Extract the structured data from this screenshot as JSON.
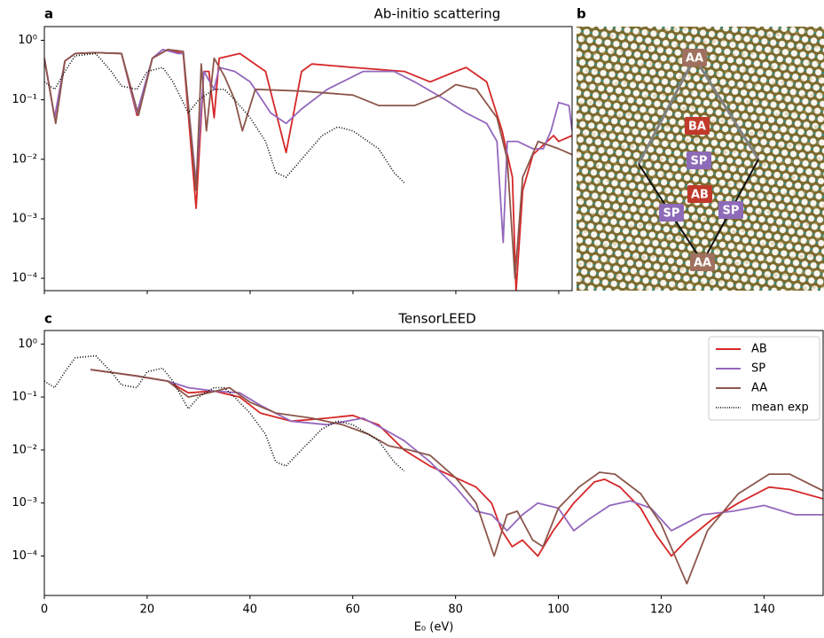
{
  "chart_data": [
    {
      "type": "line",
      "label": "a",
      "title": "Ab-initio scattering",
      "log_y": true,
      "legend": false,
      "xtick_labels": false,
      "xlim": [
        0,
        102.6
      ],
      "ylim": [
        6.2e-05,
        1.7
      ],
      "xticks": [
        0,
        20,
        40,
        60,
        80,
        100
      ],
      "yticks": [
        {
          "value": 1,
          "label": "10⁰"
        },
        {
          "value": 0.1,
          "label": "10⁻¹"
        },
        {
          "value": 0.01,
          "label": "10⁻²"
        },
        {
          "value": 0.001,
          "label": "10⁻³"
        },
        {
          "value": 0.0001,
          "label": "10⁻⁴"
        }
      ],
      "series": [
        {
          "name": "AB",
          "color": "#d62728",
          "style": "solid",
          "x": [
            0,
            2,
            4,
            6,
            10,
            15,
            18,
            21,
            24,
            27,
            29.5,
            31,
            32,
            33,
            34,
            38,
            43,
            47,
            50,
            52,
            60,
            70,
            75,
            80,
            82,
            86,
            89,
            91,
            91.7,
            93,
            95,
            99,
            100,
            102.6
          ],
          "values": [
            0.5,
            0.05,
            0.45,
            0.6,
            0.62,
            0.6,
            0.055,
            0.5,
            0.7,
            0.6,
            0.0015,
            0.3,
            0.3,
            0.05,
            0.5,
            0.6,
            0.3,
            0.013,
            0.3,
            0.4,
            0.35,
            0.3,
            0.2,
            0.3,
            0.35,
            0.2,
            0.03,
            0.005,
            6e-05,
            0.003,
            0.012,
            0.025,
            0.02,
            0.025
          ]
        },
        {
          "name": "SP",
          "color": "#9467bd",
          "style": "solid",
          "x": [
            0,
            2,
            4,
            6,
            10,
            15,
            18,
            21,
            23,
            26,
            27,
            29.5,
            31,
            33,
            34,
            37,
            40,
            44,
            47,
            50,
            55,
            62,
            68,
            72,
            78,
            82,
            86,
            88,
            89.2,
            90,
            92,
            95,
            97,
            98.5,
            100,
            102,
            102.6
          ],
          "values": [
            0.5,
            0.05,
            0.45,
            0.6,
            0.62,
            0.6,
            0.06,
            0.5,
            0.7,
            0.6,
            0.6,
            0.004,
            0.3,
            0.15,
            0.35,
            0.3,
            0.2,
            0.06,
            0.04,
            0.07,
            0.15,
            0.3,
            0.3,
            0.2,
            0.1,
            0.06,
            0.04,
            0.02,
            0.0004,
            0.02,
            0.02,
            0.015,
            0.015,
            0.03,
            0.09,
            0.08,
            0.03
          ]
        },
        {
          "name": "AA",
          "color": "#8c564b",
          "style": "solid",
          "x": [
            0,
            2.2,
            4,
            6,
            10,
            15,
            18.3,
            21,
            24,
            27,
            29.5,
            30.5,
            31.5,
            33,
            35,
            37,
            38.5,
            41,
            50,
            60,
            65,
            72,
            77,
            80,
            84,
            88,
            90,
            91.5,
            93,
            96,
            100,
            102.6
          ],
          "values": [
            0.5,
            0.04,
            0.45,
            0.6,
            0.62,
            0.6,
            0.055,
            0.5,
            0.7,
            0.65,
            0.003,
            0.4,
            0.03,
            0.5,
            0.25,
            0.1,
            0.03,
            0.15,
            0.14,
            0.12,
            0.08,
            0.08,
            0.12,
            0.18,
            0.15,
            0.05,
            0.01,
            0.0001,
            0.005,
            0.02,
            0.015,
            0.012
          ]
        },
        {
          "name": "mean exp",
          "color": "#000000",
          "style": "dotted",
          "x": [
            0,
            2,
            4,
            6,
            10,
            13,
            15,
            18,
            20,
            23,
            25,
            28,
            30,
            33,
            35,
            37,
            40,
            43,
            45,
            47,
            50,
            54,
            57,
            60,
            65,
            68,
            70
          ],
          "values": [
            0.2,
            0.15,
            0.3,
            0.55,
            0.6,
            0.3,
            0.17,
            0.15,
            0.3,
            0.35,
            0.2,
            0.06,
            0.1,
            0.15,
            0.15,
            0.1,
            0.05,
            0.02,
            0.006,
            0.005,
            0.01,
            0.025,
            0.035,
            0.03,
            0.015,
            0.006,
            0.004
          ]
        }
      ]
    },
    {
      "type": "image",
      "label": "b",
      "labels": [
        {
          "text": "AA",
          "color": "#a0705f"
        },
        {
          "text": "BA",
          "color": "#c0392b"
        },
        {
          "text": "SP",
          "color": "#8e6bb8"
        },
        {
          "text": "AB",
          "color": "#c0392b"
        },
        {
          "text": "SP",
          "color": "#8e6bb8"
        },
        {
          "text": "SP",
          "color": "#8e6bb8"
        },
        {
          "text": "AA",
          "color": "#a0705f"
        }
      ]
    },
    {
      "type": "line",
      "label": "c",
      "title": "TensorLEED",
      "log_y": true,
      "legend": "upper right",
      "xlabel": "E₀ (eV)",
      "xtick_labels": true,
      "xlim": [
        0,
        151.5
      ],
      "ylim": [
        1.8e-05,
        1.8
      ],
      "xticks": [
        0,
        20,
        40,
        60,
        80,
        100,
        120,
        140
      ],
      "yticks": [
        {
          "value": 1,
          "label": "10⁰"
        },
        {
          "value": 0.1,
          "label": "10⁻¹"
        },
        {
          "value": 0.01,
          "label": "10⁻²"
        },
        {
          "value": 0.001,
          "label": "10⁻³"
        },
        {
          "value": 0.0001,
          "label": "10⁻⁴"
        }
      ],
      "series": [
        {
          "name": "AB",
          "color": "#d62728",
          "style": "solid",
          "x": [
            9,
            18,
            24,
            28,
            33,
            38,
            42,
            48,
            55,
            60,
            65,
            70,
            75,
            80,
            84,
            87,
            89,
            91,
            93,
            96,
            99,
            103,
            107,
            109,
            112,
            116,
            119,
            122,
            125,
            130,
            135,
            141,
            145,
            151.5
          ],
          "values": [
            0.33,
            0.25,
            0.2,
            0.12,
            0.13,
            0.1,
            0.05,
            0.035,
            0.04,
            0.045,
            0.03,
            0.01,
            0.005,
            0.003,
            0.002,
            0.001,
            0.0003,
            0.00015,
            0.0002,
            0.0001,
            0.0003,
            0.001,
            0.0025,
            0.0028,
            0.002,
            0.0008,
            0.00025,
            0.0001,
            0.0002,
            0.0005,
            0.001,
            0.002,
            0.0018,
            0.0012
          ]
        },
        {
          "name": "SP",
          "color": "#9467bd",
          "style": "solid",
          "x": [
            9,
            18,
            24,
            28,
            33,
            38,
            42,
            48,
            55,
            62,
            66,
            70,
            75,
            80,
            84,
            87,
            90,
            93,
            96,
            100,
            103,
            106,
            110,
            114,
            118,
            122,
            128,
            134,
            140,
            146,
            151.5
          ],
          "values": [
            0.33,
            0.25,
            0.2,
            0.15,
            0.13,
            0.12,
            0.07,
            0.035,
            0.03,
            0.04,
            0.025,
            0.015,
            0.006,
            0.002,
            0.0007,
            0.0006,
            0.0003,
            0.0006,
            0.001,
            0.0008,
            0.0003,
            0.0005,
            0.0009,
            0.0011,
            0.0008,
            0.0003,
            0.0006,
            0.0007,
            0.0009,
            0.0006,
            0.0006
          ]
        },
        {
          "name": "AA",
          "color": "#8c564b",
          "style": "solid",
          "x": [
            9,
            18,
            24,
            28,
            32,
            36,
            40,
            45,
            52,
            58,
            63,
            67,
            71,
            75,
            80,
            84,
            87.5,
            90,
            92,
            95,
            97,
            100,
            104,
            108,
            111,
            116,
            120,
            125,
            129,
            135,
            141,
            145,
            151.5
          ],
          "values": [
            0.33,
            0.25,
            0.2,
            0.1,
            0.12,
            0.15,
            0.08,
            0.05,
            0.04,
            0.03,
            0.02,
            0.012,
            0.01,
            0.008,
            0.003,
            0.001,
            0.0001,
            0.0006,
            0.0007,
            0.0002,
            0.00015,
            0.0008,
            0.002,
            0.0038,
            0.0035,
            0.0015,
            0.0004,
            3e-05,
            0.0003,
            0.0015,
            0.0035,
            0.0035,
            0.0017
          ]
        },
        {
          "name": "mean exp",
          "color": "#000000",
          "style": "dotted",
          "x": [
            0,
            2,
            4,
            6,
            10,
            13,
            15,
            18,
            20,
            23,
            25,
            28,
            30,
            33,
            35,
            37,
            40,
            43,
            45,
            47,
            50,
            54,
            57,
            60,
            65,
            68,
            70
          ],
          "values": [
            0.2,
            0.15,
            0.3,
            0.55,
            0.6,
            0.3,
            0.17,
            0.15,
            0.3,
            0.35,
            0.2,
            0.06,
            0.1,
            0.15,
            0.15,
            0.1,
            0.05,
            0.02,
            0.006,
            0.005,
            0.01,
            0.025,
            0.035,
            0.03,
            0.015,
            0.006,
            0.004
          ]
        }
      ]
    }
  ]
}
